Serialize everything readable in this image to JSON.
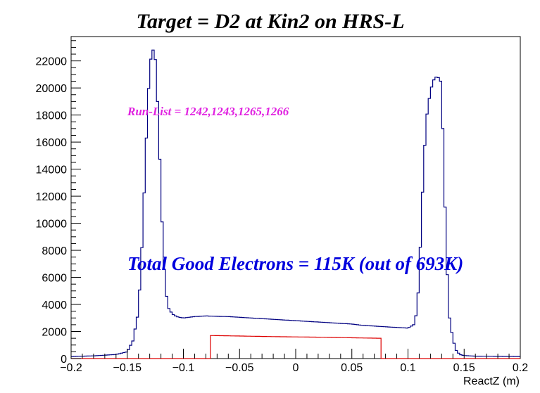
{
  "chart_data": {
    "type": "histogram",
    "title": "Target = D2 at Kin2 on HRS-L",
    "xlabel": "ReactZ (m)",
    "ylabel": "",
    "xlim": [
      -0.2,
      0.2
    ],
    "ylim": [
      0,
      23800
    ],
    "x_ticks": [
      "−0.2",
      "−0.15",
      "−0.1",
      "−0.05",
      "0",
      "0.05",
      "0.1",
      "0.15",
      "0.2"
    ],
    "y_ticks": [
      "0",
      "2000",
      "4000",
      "6000",
      "8000",
      "10000",
      "12000",
      "14000",
      "16000",
      "18000",
      "20000",
      "22000"
    ],
    "annotations": [
      {
        "text": "Run-List = 1242,1243,1265,1266",
        "color": "#e020e0"
      },
      {
        "text": "Total Good Electrons = 115K (out of 693K)",
        "color": "#0000dd"
      }
    ],
    "grid": false,
    "legend": "none",
    "series": [
      {
        "color": "#000080",
        "x": [
          -0.2,
          -0.18,
          -0.16,
          -0.15,
          -0.145,
          -0.14,
          -0.137,
          -0.133,
          -0.13,
          -0.127,
          -0.125,
          -0.123,
          -0.12,
          -0.118,
          -0.115,
          -0.113,
          -0.11,
          -0.107,
          -0.104,
          -0.1,
          -0.09,
          -0.08,
          -0.07,
          -0.06,
          -0.05,
          -0.04,
          -0.03,
          -0.02,
          -0.01,
          0.0,
          0.01,
          0.02,
          0.03,
          0.04,
          0.05,
          0.06,
          0.07,
          0.08,
          0.09,
          0.1,
          0.105,
          0.108,
          0.11,
          0.113,
          0.116,
          0.12,
          0.123,
          0.126,
          0.129,
          0.131,
          0.133,
          0.135,
          0.137,
          0.14,
          0.143,
          0.146,
          0.15,
          0.16,
          0.18,
          0.2
        ],
        "y": [
          150,
          200,
          300,
          500,
          1300,
          3500,
          8200,
          16300,
          21800,
          22800,
          22100,
          19000,
          12600,
          7600,
          4600,
          3700,
          3300,
          3150,
          3050,
          3000,
          3100,
          3150,
          3120,
          3100,
          3050,
          3000,
          2950,
          2900,
          2850,
          2800,
          2750,
          2700,
          2650,
          2600,
          2550,
          2450,
          2400,
          2350,
          2300,
          2250,
          2500,
          3500,
          6200,
          12300,
          17500,
          19800,
          20600,
          20900,
          20500,
          17000,
          11200,
          6200,
          3000,
          1400,
          600,
          300,
          220,
          180,
          160,
          150
        ]
      },
      {
        "color": "#dd0000",
        "x": [
          -0.2,
          -0.076,
          -0.075,
          -0.06,
          -0.04,
          -0.02,
          0.0,
          0.02,
          0.04,
          0.06,
          0.075,
          0.076,
          0.2
        ],
        "y": [
          0,
          0,
          1700,
          1680,
          1650,
          1620,
          1600,
          1580,
          1550,
          1520,
          1500,
          0,
          0
        ]
      }
    ]
  }
}
